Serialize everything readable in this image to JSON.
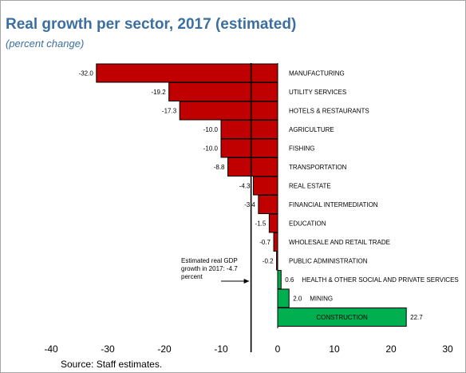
{
  "chart_data": {
    "type": "bar",
    "orientation": "horizontal",
    "title": "Real growth per sector, 2017 (estimated)",
    "subtitle": "(percent change)",
    "categories": [
      "MANUFACTURING",
      "UTILITY SERVICES",
      "HOTELS & RESTAURANTS",
      "AGRICULTURE",
      "FISHING",
      "TRANSPORTATION",
      "REAL ESTATE",
      "FINANCIAL INTERMEDIATION",
      "EDUCATION",
      "WHOLESALE AND RETAIL TRADE",
      "PUBLIC ADMINISTRATION",
      "HEALTH & OTHER SOCIAL AND PRIVATE SERVICES",
      "MINING",
      "CONSTRUCTION"
    ],
    "values": [
      -32.0,
      -19.2,
      -17.3,
      -10.0,
      -10.0,
      -8.8,
      -4.3,
      -3.4,
      -1.5,
      -0.7,
      -0.2,
      0.6,
      2.0,
      22.7
    ],
    "value_labels": [
      "-32.0",
      "-19.2",
      "-17.3",
      "-10.0",
      "-10.0",
      "-8.8",
      "-4.3",
      "-3.4",
      "-1.5",
      "-0.7",
      "-0.2",
      "0.6",
      "2.0",
      "22.7"
    ],
    "xlim": [
      -40,
      30
    ],
    "xticks": [
      -40,
      -30,
      -20,
      -10,
      0,
      10,
      20,
      30
    ],
    "xlabel": "",
    "ylabel": "",
    "reference_line": {
      "value": -4.7,
      "label": "Estimated real GDP growth in 2017: -4.7 percent"
    },
    "colors": {
      "negative": "#c00000",
      "positive": "#00b050",
      "title": "#3c6fa0"
    },
    "grid": false,
    "legend": "none",
    "source": "Source: Staff estimates."
  }
}
